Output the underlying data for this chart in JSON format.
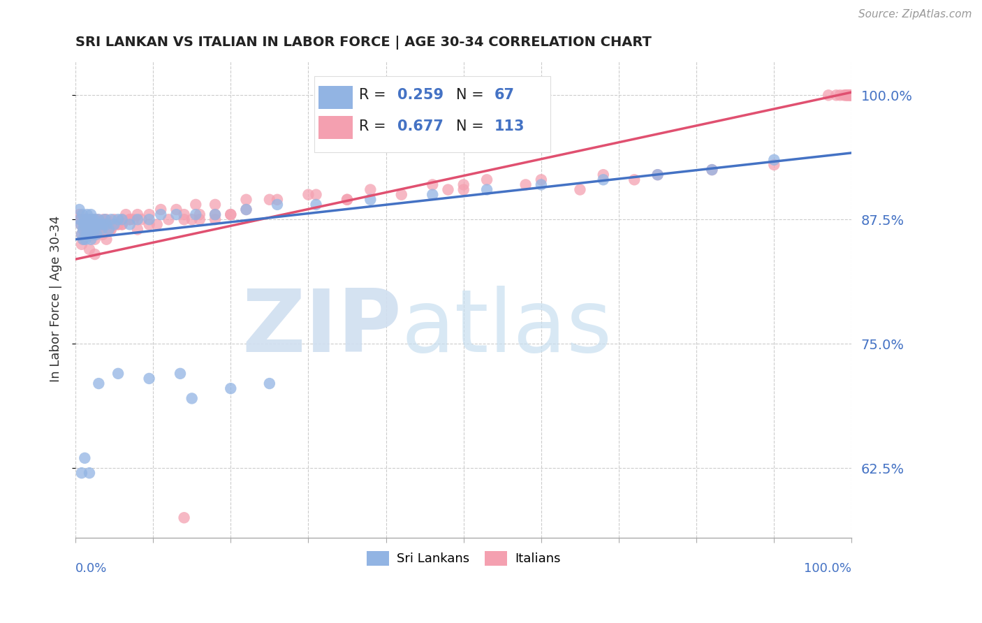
{
  "title": "SRI LANKAN VS ITALIAN IN LABOR FORCE | AGE 30-34 CORRELATION CHART",
  "source": "Source: ZipAtlas.com",
  "ylabel": "In Labor Force | Age 30-34",
  "ytick_values": [
    0.625,
    0.75,
    0.875,
    1.0
  ],
  "xlim": [
    0.0,
    1.0
  ],
  "ylim": [
    0.555,
    1.035
  ],
  "sri_lankan_R": 0.259,
  "sri_lankan_N": 67,
  "italian_R": 0.677,
  "italian_N": 113,
  "sri_lankan_color": "#92b4e3",
  "sri_lankan_line_color": "#4472c4",
  "italian_color": "#f4a0b0",
  "italian_line_color": "#e05070",
  "watermark_zip_color": "#d0dff0",
  "watermark_atlas_color": "#c8dff0",
  "background_color": "#ffffff",
  "sl_line_x0": 0.0,
  "sl_line_y0": 0.855,
  "sl_line_x1": 1.0,
  "sl_line_y1": 0.942,
  "it_line_x0": 0.0,
  "it_line_y0": 0.835,
  "it_line_x1": 1.0,
  "it_line_y1": 1.003,
  "sl_scatter_x": [
    0.005,
    0.006,
    0.007,
    0.008,
    0.009,
    0.01,
    0.01,
    0.011,
    0.012,
    0.013,
    0.013,
    0.014,
    0.015,
    0.015,
    0.016,
    0.017,
    0.018,
    0.019,
    0.02,
    0.02,
    0.021,
    0.022,
    0.023,
    0.024,
    0.025,
    0.026,
    0.027,
    0.028,
    0.03,
    0.032,
    0.034,
    0.036,
    0.038,
    0.04,
    0.043,
    0.046,
    0.05,
    0.055,
    0.06,
    0.07,
    0.08,
    0.095,
    0.11,
    0.13,
    0.155,
    0.18,
    0.22,
    0.26,
    0.31,
    0.38,
    0.46,
    0.53,
    0.6,
    0.68,
    0.75,
    0.82,
    0.9,
    0.15,
    0.2,
    0.25,
    0.135,
    0.095,
    0.055,
    0.03,
    0.018,
    0.012,
    0.008
  ],
  "sl_scatter_y": [
    0.885,
    0.875,
    0.87,
    0.86,
    0.88,
    0.865,
    0.855,
    0.87,
    0.875,
    0.855,
    0.87,
    0.86,
    0.88,
    0.87,
    0.865,
    0.875,
    0.87,
    0.865,
    0.88,
    0.855,
    0.87,
    0.875,
    0.86,
    0.865,
    0.875,
    0.87,
    0.86,
    0.87,
    0.875,
    0.87,
    0.865,
    0.87,
    0.875,
    0.87,
    0.865,
    0.875,
    0.87,
    0.875,
    0.875,
    0.87,
    0.875,
    0.875,
    0.88,
    0.88,
    0.88,
    0.88,
    0.885,
    0.89,
    0.89,
    0.895,
    0.9,
    0.905,
    0.91,
    0.915,
    0.92,
    0.925,
    0.935,
    0.695,
    0.705,
    0.71,
    0.72,
    0.715,
    0.72,
    0.71,
    0.62,
    0.635,
    0.62
  ],
  "it_scatter_x": [
    0.005,
    0.006,
    0.007,
    0.008,
    0.009,
    0.01,
    0.011,
    0.012,
    0.013,
    0.014,
    0.015,
    0.016,
    0.017,
    0.018,
    0.019,
    0.02,
    0.021,
    0.022,
    0.023,
    0.024,
    0.025,
    0.026,
    0.027,
    0.028,
    0.03,
    0.032,
    0.034,
    0.036,
    0.038,
    0.04,
    0.043,
    0.046,
    0.05,
    0.055,
    0.06,
    0.07,
    0.08,
    0.095,
    0.11,
    0.13,
    0.155,
    0.18,
    0.22,
    0.26,
    0.31,
    0.38,
    0.46,
    0.53,
    0.6,
    0.68,
    0.75,
    0.82,
    0.9,
    0.2,
    0.25,
    0.15,
    0.3,
    0.35,
    0.42,
    0.5,
    0.58,
    0.65,
    0.72,
    0.14,
    0.08,
    0.06,
    0.04,
    0.025,
    0.018,
    0.97,
    0.98,
    0.985,
    0.99,
    0.992,
    0.993,
    0.994,
    0.995,
    0.996,
    0.997,
    0.998,
    0.999,
    0.999,
    0.01,
    0.008,
    0.012,
    0.015,
    0.02,
    0.025,
    0.03,
    0.035,
    0.04,
    0.05,
    0.06,
    0.07,
    0.045,
    0.055,
    0.065,
    0.075,
    0.085,
    0.095,
    0.105,
    0.12,
    0.14,
    0.16,
    0.18,
    0.2,
    0.22,
    0.5,
    0.48,
    0.35,
    0.18,
    0.16,
    0.14
  ],
  "it_scatter_y": [
    0.88,
    0.875,
    0.87,
    0.86,
    0.875,
    0.865,
    0.87,
    0.875,
    0.86,
    0.865,
    0.875,
    0.87,
    0.865,
    0.875,
    0.86,
    0.875,
    0.87,
    0.86,
    0.865,
    0.875,
    0.87,
    0.86,
    0.865,
    0.875,
    0.87,
    0.865,
    0.87,
    0.875,
    0.87,
    0.875,
    0.87,
    0.865,
    0.875,
    0.87,
    0.875,
    0.875,
    0.88,
    0.88,
    0.885,
    0.885,
    0.89,
    0.89,
    0.895,
    0.895,
    0.9,
    0.905,
    0.91,
    0.915,
    0.915,
    0.92,
    0.92,
    0.925,
    0.93,
    0.88,
    0.895,
    0.875,
    0.9,
    0.895,
    0.9,
    0.91,
    0.91,
    0.905,
    0.915,
    0.875,
    0.865,
    0.87,
    0.855,
    0.84,
    0.845,
    1.0,
    1.0,
    1.0,
    1.0,
    1.0,
    1.0,
    1.0,
    1.0,
    1.0,
    1.0,
    1.0,
    1.0,
    1.0,
    0.855,
    0.85,
    0.86,
    0.865,
    0.87,
    0.855,
    0.865,
    0.86,
    0.87,
    0.87,
    0.87,
    0.875,
    0.865,
    0.87,
    0.88,
    0.875,
    0.875,
    0.87,
    0.87,
    0.875,
    0.88,
    0.88,
    0.88,
    0.88,
    0.885,
    0.905,
    0.905,
    0.895,
    0.875,
    0.875,
    0.575
  ]
}
